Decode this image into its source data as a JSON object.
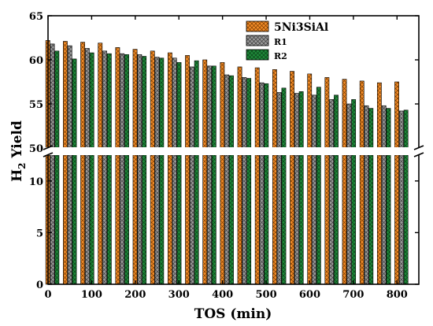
{
  "chart_data": {
    "type": "bar",
    "xlabel": "TOS (min)",
    "ylabel": "H2 Yield",
    "ylabel_main": "H",
    "ylabel_sub": "2",
    "ylabel_rest": " Yield",
    "x_ticks": [
      0,
      100,
      200,
      300,
      400,
      500,
      600,
      700,
      800
    ],
    "y_ticks_upper": [
      50,
      55,
      60,
      65
    ],
    "y_ticks_lower": [
      0,
      5,
      10
    ],
    "ylim_upper": [
      50,
      65
    ],
    "ylim_lower": [
      0,
      12.5
    ],
    "x": [
      10,
      50,
      90,
      130,
      170,
      210,
      250,
      290,
      330,
      370,
      410,
      450,
      490,
      530,
      570,
      610,
      650,
      690,
      730,
      770,
      810
    ],
    "series": [
      {
        "name": "5Ni3SiAl",
        "color": "#f28c28",
        "pattern": "crosshatch",
        "values": [
          62.2,
          62.1,
          62.0,
          61.9,
          61.4,
          61.2,
          61.0,
          60.8,
          60.5,
          60.0,
          59.7,
          59.2,
          59.1,
          58.9,
          58.7,
          58.4,
          58.0,
          57.8,
          57.6,
          57.4,
          57.5
        ]
      },
      {
        "name": "R1",
        "color": "#8c8c8c",
        "pattern": "crosshatch",
        "values": [
          61.8,
          61.6,
          61.3,
          61.0,
          60.7,
          60.6,
          60.3,
          60.2,
          59.2,
          59.3,
          58.3,
          58.0,
          57.4,
          56.3,
          56.2,
          56.0,
          55.5,
          55.0,
          54.8,
          54.8,
          54.2
        ]
      },
      {
        "name": "R2",
        "color": "#1f8a3a",
        "pattern": "crosshatch",
        "values": [
          61.0,
          60.1,
          60.8,
          60.7,
          60.6,
          60.4,
          60.2,
          59.7,
          59.9,
          59.3,
          58.2,
          57.9,
          57.3,
          56.8,
          56.4,
          56.9,
          56.0,
          55.5,
          54.5,
          54.5,
          54.3
        ]
      }
    ],
    "legend_position": "top-right",
    "axis_break": true,
    "grid": false
  }
}
